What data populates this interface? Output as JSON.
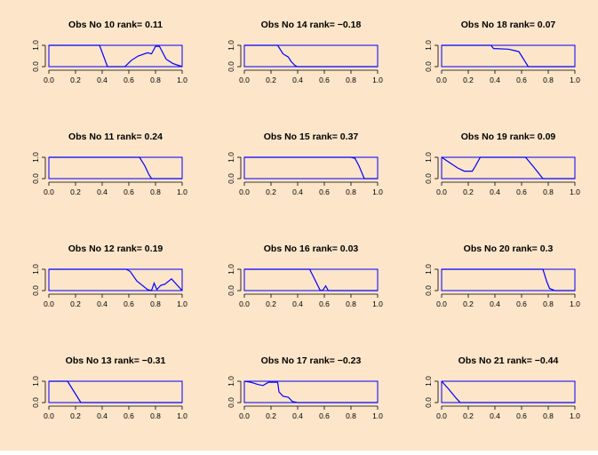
{
  "figure": {
    "background": "#fce5c9",
    "line_color": "#0000ff",
    "text_color": "#000000"
  },
  "chart_data": [
    {
      "type": "line",
      "title": "Obs No  10 rank= 0.11",
      "xlim": [
        0,
        1.0
      ],
      "ylim": [
        0,
        1
      ],
      "xticks": [
        "0.0",
        "0.2",
        "0.4",
        "0.6",
        "0.8",
        "1.0"
      ],
      "yticks": [
        "0.0",
        "1.0"
      ],
      "x": [
        0,
        0.38,
        0.44,
        0.57,
        0.62,
        0.67,
        0.74,
        0.77,
        0.8,
        0.83,
        0.88,
        0.93,
        1.0
      ],
      "y": [
        1,
        1,
        0,
        0,
        0.3,
        0.5,
        0.65,
        0.6,
        0.95,
        0.95,
        0.35,
        0.15,
        0
      ]
    },
    {
      "type": "line",
      "title": "Obs No  14 rank= −0.18",
      "xlim": [
        0,
        1.0
      ],
      "ylim": [
        0,
        1
      ],
      "xticks": [
        "0.0",
        "0.2",
        "0.4",
        "0.6",
        "0.8",
        "1.0"
      ],
      "yticks": [
        "0.0",
        "1.0"
      ],
      "x": [
        0,
        0.25,
        0.29,
        0.33,
        0.35,
        0.38,
        0.4,
        1.0
      ],
      "y": [
        1,
        1,
        0.6,
        0.45,
        0.25,
        0.05,
        0,
        0
      ]
    },
    {
      "type": "line",
      "title": "Obs No  18 rank= 0.07",
      "xlim": [
        0,
        1.0
      ],
      "ylim": [
        0,
        1
      ],
      "xticks": [
        "0.0",
        "0.2",
        "0.4",
        "0.6",
        "0.8",
        "1.0"
      ],
      "yticks": [
        "0.0",
        "1.0"
      ],
      "x": [
        0,
        0.37,
        0.39,
        0.5,
        0.55,
        0.58,
        0.6,
        0.62,
        0.65,
        1.0
      ],
      "y": [
        1,
        1,
        0.85,
        0.82,
        0.75,
        0.7,
        0.5,
        0.3,
        0,
        0
      ]
    },
    {
      "type": "line",
      "title": "Obs No  11 rank= 0.24",
      "xlim": [
        0,
        1.0
      ],
      "ylim": [
        0,
        1
      ],
      "xticks": [
        "0.0",
        "0.2",
        "0.4",
        "0.6",
        "0.8",
        "1.0"
      ],
      "yticks": [
        "0.0",
        "1.0"
      ],
      "x": [
        0,
        0.68,
        0.72,
        0.75,
        0.77,
        1.0
      ],
      "y": [
        1,
        1,
        0.6,
        0.2,
        0,
        0
      ]
    },
    {
      "type": "line",
      "title": "Obs No  15 rank= 0.37",
      "xlim": [
        0,
        1.0
      ],
      "ylim": [
        0,
        1
      ],
      "xticks": [
        "0.0",
        "0.2",
        "0.4",
        "0.6",
        "0.8",
        "1.0"
      ],
      "yticks": [
        "0.0",
        "1.0"
      ],
      "x": [
        0,
        0.8,
        0.83,
        0.86,
        0.9,
        1.0
      ],
      "y": [
        1,
        1,
        0.95,
        0.6,
        0,
        0
      ]
    },
    {
      "type": "line",
      "title": "Obs No  19 rank= 0.09",
      "xlim": [
        0,
        1.0
      ],
      "ylim": [
        0,
        1
      ],
      "xticks": [
        "0.0",
        "0.2",
        "0.4",
        "0.6",
        "0.8",
        "1.0"
      ],
      "yticks": [
        "0.0",
        "1.0"
      ],
      "x": [
        0,
        0.06,
        0.12,
        0.17,
        0.23,
        0.25,
        0.29,
        0.63,
        0.69,
        0.76,
        1.0
      ],
      "y": [
        1,
        0.75,
        0.5,
        0.35,
        0.35,
        0.55,
        1,
        1,
        0.55,
        0,
        0
      ]
    },
    {
      "type": "line",
      "title": "Obs No  12 rank= 0.19",
      "xlim": [
        0,
        1.0
      ],
      "ylim": [
        0,
        1
      ],
      "xticks": [
        "0.0",
        "0.2",
        "0.4",
        "0.6",
        "0.8",
        "1.0"
      ],
      "yticks": [
        "0.0",
        "1.0"
      ],
      "x": [
        0,
        0.58,
        0.61,
        0.66,
        0.74,
        0.77,
        0.79,
        0.81,
        0.84,
        0.87,
        0.92,
        1.0
      ],
      "y": [
        1,
        1,
        0.9,
        0.45,
        0.05,
        0,
        0.35,
        0.05,
        0.25,
        0.3,
        0.55,
        0
      ]
    },
    {
      "type": "line",
      "title": "Obs No  16 rank= 0.03",
      "xlim": [
        0,
        1.0
      ],
      "ylim": [
        0,
        1
      ],
      "xticks": [
        "0.0",
        "0.2",
        "0.4",
        "0.6",
        "0.8",
        "1.0"
      ],
      "yticks": [
        "0.0",
        "1.0"
      ],
      "x": [
        0,
        0.49,
        0.53,
        0.57,
        0.59,
        0.61,
        0.63,
        1.0
      ],
      "y": [
        1,
        1,
        0.5,
        0,
        0.03,
        0.22,
        0,
        0
      ]
    },
    {
      "type": "line",
      "title": "Obs No  20 rank= 0.3",
      "xlim": [
        0,
        1.0
      ],
      "ylim": [
        0,
        1
      ],
      "xticks": [
        "0.0",
        "0.2",
        "0.4",
        "0.6",
        "0.8",
        "1.0"
      ],
      "yticks": [
        "0.0",
        "1.0"
      ],
      "x": [
        0,
        0.76,
        0.79,
        0.81,
        0.85,
        1.0
      ],
      "y": [
        1,
        1,
        0.4,
        0.1,
        0,
        0
      ]
    },
    {
      "type": "line",
      "title": "Obs No  13 rank= −0.31",
      "xlim": [
        0,
        1.0
      ],
      "ylim": [
        0,
        1
      ],
      "xticks": [
        "0.0",
        "0.2",
        "0.4",
        "0.6",
        "0.8",
        "1.0"
      ],
      "yticks": [
        "0.0",
        "1.0"
      ],
      "x": [
        0,
        0.14,
        0.19,
        0.24,
        1.0
      ],
      "y": [
        1,
        1,
        0.5,
        0,
        0
      ]
    },
    {
      "type": "line",
      "title": "Obs No  17 rank= −0.23",
      "xlim": [
        0,
        1.0
      ],
      "ylim": [
        0,
        1
      ],
      "xticks": [
        "0.0",
        "0.2",
        "0.4",
        "0.6",
        "0.8",
        "1.0"
      ],
      "yticks": [
        "0.0",
        "1.0"
      ],
      "x": [
        0,
        0.05,
        0.1,
        0.14,
        0.18,
        0.25,
        0.26,
        0.29,
        0.33,
        0.36,
        0.4,
        1.0
      ],
      "y": [
        1,
        0.95,
        0.85,
        0.8,
        0.95,
        0.95,
        0.5,
        0.3,
        0.25,
        0.05,
        0,
        0
      ]
    },
    {
      "type": "line",
      "title": "Obs No  21 rank= −0.44",
      "xlim": [
        0,
        1.0
      ],
      "ylim": [
        0,
        1
      ],
      "xticks": [
        "0.0",
        "0.2",
        "0.4",
        "0.6",
        "0.8",
        "1.0"
      ],
      "yticks": [
        "0.0",
        "1.0"
      ],
      "x": [
        0,
        0.05,
        0.11,
        0.14,
        1.0
      ],
      "y": [
        1,
        0.65,
        0.2,
        0,
        0
      ]
    }
  ]
}
